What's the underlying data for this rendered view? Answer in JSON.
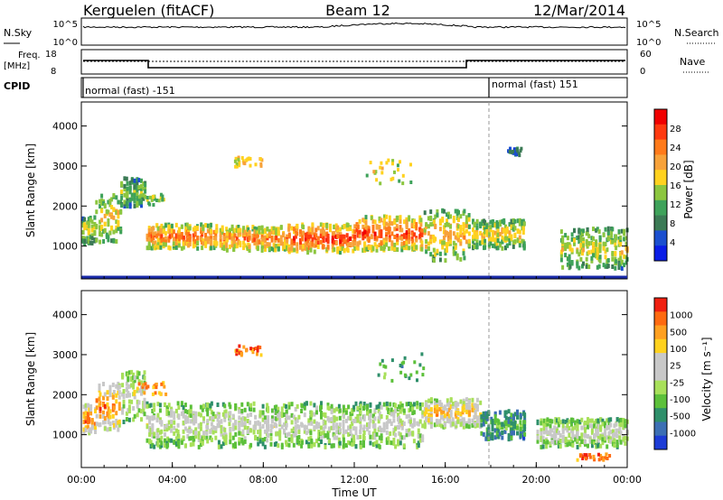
{
  "header": {
    "station": "Kerguelen (fitACF)",
    "beam": "Beam 12",
    "date": "12/Mar/2014"
  },
  "panels": {
    "nsky": {
      "label": "N.Sky",
      "right_label": "N.Search",
      "ticks_left": [
        "10^5",
        "10^0"
      ],
      "ticks_right": [
        "10^5",
        "10^0"
      ]
    },
    "freq": {
      "label_line1": "Freq.",
      "label_line2": "[MHz]",
      "right_label": "Nave",
      "ticks_left": [
        "18",
        "8"
      ],
      "ticks_right": [
        "60",
        "0"
      ]
    },
    "cpid": {
      "label": "CPID",
      "mode_left": "normal (fast) -151",
      "mode_right": "normal (fast) 151"
    }
  },
  "chart_data": [
    {
      "type": "heatmap",
      "title": "",
      "ylabel": "Slant Range [km]",
      "xlabel": "",
      "ylim": [
        180,
        4600
      ],
      "xlim": [
        0,
        24
      ],
      "yticks": [
        "4000",
        "3000",
        "2000",
        "1000"
      ],
      "colorbar": {
        "label": "Power [dB]",
        "ticks": [
          "28",
          "24",
          "20",
          "16",
          "12",
          "8",
          "4"
        ],
        "colors": [
          "#0a1de6",
          "#1b4fcf",
          "#3b7a55",
          "#3ea25a",
          "#8cc63f",
          "#ffd21f",
          "#f7a23a",
          "#ff7a1a",
          "#ff3a10",
          "#f00000"
        ]
      },
      "bands": [
        {
          "t0": 0.0,
          "t1": 0.6,
          "r_low": 1050,
          "r_high": 1750,
          "level": 0.45
        },
        {
          "t0": 0.6,
          "t1": 1.7,
          "r_low": 1100,
          "r_high": 2300,
          "level": 0.55
        },
        {
          "t0": 1.7,
          "t1": 2.8,
          "r_low": 2000,
          "r_high": 2700,
          "level": 0.4
        },
        {
          "t0": 2.8,
          "t1": 6.0,
          "r_low": 950,
          "r_high": 1550,
          "level": 0.75
        },
        {
          "t0": 6.0,
          "t1": 9.0,
          "r_low": 900,
          "r_high": 1500,
          "level": 0.7
        },
        {
          "t0": 9.0,
          "t1": 12.0,
          "r_low": 850,
          "r_high": 1550,
          "level": 0.85
        },
        {
          "t0": 12.0,
          "t1": 15.0,
          "r_low": 900,
          "r_high": 1750,
          "level": 0.8
        },
        {
          "t0": 15.0,
          "t1": 17.0,
          "r_low": 650,
          "r_high": 1900,
          "level": 0.6
        },
        {
          "t0": 17.0,
          "t1": 19.5,
          "r_low": 950,
          "r_high": 1650,
          "level": 0.55
        },
        {
          "t0": 21.0,
          "t1": 24.0,
          "r_low": 450,
          "r_high": 1450,
          "level": 0.5
        }
      ],
      "patches": [
        {
          "t": 7.3,
          "r": 3150,
          "dt": 1.2,
          "dr": 250,
          "level": 0.55
        },
        {
          "t": 13.5,
          "r": 2900,
          "dt": 2.0,
          "dr": 600,
          "level": 0.5
        },
        {
          "t": 3.0,
          "r": 2200,
          "dt": 1.5,
          "dr": 300,
          "level": 0.45
        },
        {
          "t": 19.0,
          "r": 3400,
          "dt": 0.6,
          "dr": 200,
          "level": 0.2
        }
      ]
    },
    {
      "type": "heatmap",
      "title": "",
      "ylabel": "Slant Range [km]",
      "xlabel": "Time UT",
      "ylim": [
        180,
        4600
      ],
      "xlim": [
        0,
        24
      ],
      "yticks": [
        "4000",
        "3000",
        "2000",
        "1000"
      ],
      "xticks": [
        "00:00",
        "04:00",
        "08:00",
        "12:00",
        "16:00",
        "20:00",
        "00:00"
      ],
      "colorbar": {
        "label": "Velocity [m s⁻¹]",
        "ticks": [
          "1000",
          "500",
          "100",
          "25",
          "-25",
          "-100",
          "-500",
          "-1000"
        ],
        "colors": [
          "#1d3cd6",
          "#3c6fb4",
          "#2e8f6a",
          "#5cc03a",
          "#a8e05a",
          "#c8c8c8",
          "#c8c8c8",
          "#ffd21f",
          "#ffa020",
          "#ff6a10",
          "#f02010"
        ]
      },
      "bands": [
        {
          "t0": 0.0,
          "t1": 0.6,
          "r_low": 1050,
          "r_high": 1750,
          "level": 0.85
        },
        {
          "t0": 0.6,
          "t1": 1.7,
          "r_low": 1100,
          "r_high": 2300,
          "level": 0.8
        },
        {
          "t0": 1.7,
          "t1": 2.8,
          "r_low": 1300,
          "r_high": 2600,
          "level": 0.5
        },
        {
          "t0": 2.8,
          "t1": 15.0,
          "r_low": 700,
          "r_high": 1800,
          "level": 0.5
        },
        {
          "t0": 15.0,
          "t1": 17.5,
          "r_low": 1200,
          "r_high": 1900,
          "level": 0.7
        },
        {
          "t0": 17.5,
          "t1": 19.5,
          "r_low": 900,
          "r_high": 1600,
          "level": 0.25
        },
        {
          "t0": 20.0,
          "t1": 24.0,
          "r_low": 700,
          "r_high": 1400,
          "level": 0.5
        }
      ],
      "patches": [
        {
          "t": 7.3,
          "r": 3150,
          "dt": 1.2,
          "dr": 250,
          "level": 0.85
        },
        {
          "t": 14.0,
          "r": 2700,
          "dt": 2.0,
          "dr": 800,
          "level": 0.25
        },
        {
          "t": 3.0,
          "r": 2200,
          "dt": 1.5,
          "dr": 300,
          "level": 0.8
        },
        {
          "t": 22.5,
          "r": 480,
          "dt": 1.5,
          "dr": 150,
          "level": 0.85
        }
      ]
    }
  ]
}
